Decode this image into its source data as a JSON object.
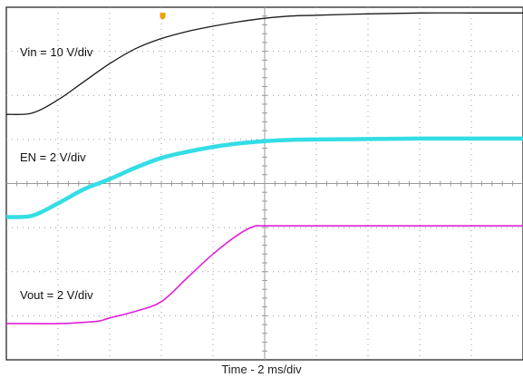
{
  "chart_data": {
    "type": "line",
    "title": "",
    "xlabel": "Time - 2 ms/div",
    "ylabel": "",
    "grid": true,
    "grid_divisions": {
      "x": 10,
      "y": 8
    },
    "x_units": "div",
    "y_units": "div",
    "xlim": [
      0,
      10
    ],
    "ylim": [
      -4,
      4
    ],
    "series": [
      {
        "name": "Vin = 10 V/div",
        "color": "#1a1a1a",
        "x": [
          0,
          0.5,
          1.0,
          1.5,
          2.0,
          2.5,
          3.0,
          3.5,
          4.0,
          4.5,
          5.0,
          5.5,
          6.0,
          7.0,
          8.0,
          9.0,
          10.0
        ],
        "y": [
          1.57,
          1.6,
          1.9,
          2.31,
          2.72,
          3.06,
          3.29,
          3.45,
          3.57,
          3.67,
          3.75,
          3.8,
          3.82,
          3.85,
          3.87,
          3.87,
          3.87
        ]
      },
      {
        "name": "EN = 2 V/div",
        "color": "#33dde6",
        "x": [
          0,
          0.5,
          1.0,
          1.5,
          2.0,
          2.5,
          3.0,
          3.5,
          4.0,
          4.5,
          5.0,
          5.5,
          6.0,
          7.0,
          8.0,
          9.0,
          10.0
        ],
        "y": [
          -0.76,
          -0.73,
          -0.45,
          -0.13,
          0.1,
          0.36,
          0.58,
          0.72,
          0.83,
          0.91,
          0.96,
          0.99,
          1.0,
          1.01,
          1.02,
          1.02,
          1.02
        ]
      },
      {
        "name": "Vout = 2 V/div",
        "color": "#e020d8",
        "x": [
          0,
          0.5,
          1.0,
          1.5,
          1.8,
          2.0,
          2.5,
          3.0,
          3.5,
          4.0,
          4.5,
          4.8,
          5.0,
          6.0,
          7.0,
          8.0,
          9.0,
          10.0
        ],
        "y": [
          -3.18,
          -3.18,
          -3.18,
          -3.15,
          -3.12,
          -3.05,
          -2.9,
          -2.68,
          -2.14,
          -1.6,
          -1.15,
          -0.97,
          -0.96,
          -0.96,
          -0.96,
          -0.96,
          -0.96,
          -0.96
        ]
      }
    ]
  }
}
